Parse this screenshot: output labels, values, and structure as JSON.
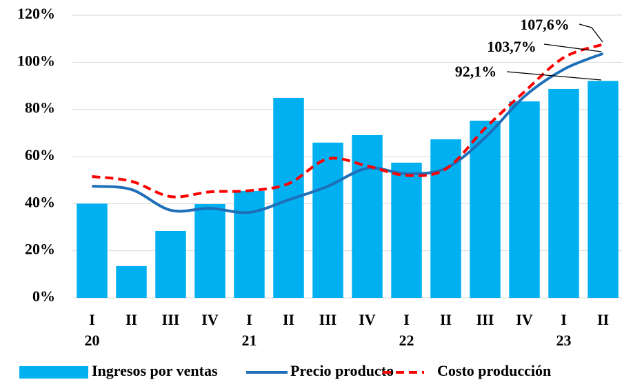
{
  "chart_data": {
    "type": "bar",
    "categories": [
      "I",
      "II",
      "III",
      "IV",
      "I",
      "II",
      "III",
      "IV",
      "I",
      "II",
      "III",
      "IV",
      "I",
      "II"
    ],
    "year_labels": [
      "20",
      null,
      null,
      null,
      "21",
      null,
      null,
      null,
      "22",
      null,
      null,
      null,
      "23",
      null
    ],
    "series": [
      {
        "name": "Ingresos por ventas",
        "type": "bar",
        "color": "#00b0f0",
        "values": [
          40,
          13.5,
          28.4,
          39.8,
          45.4,
          84.9,
          65.9,
          69.1,
          57.4,
          67.3,
          75.2,
          83.4,
          88.7,
          92.1
        ],
        "value_labels": [
          null,
          null,
          null,
          null,
          null,
          null,
          null,
          null,
          null,
          null,
          null,
          null,
          null,
          "92,1%"
        ]
      },
      {
        "name": "Precio producto",
        "type": "line",
        "color": "#1f6fb8",
        "dashed": false,
        "values": [
          47.4,
          46,
          37.2,
          38,
          36.3,
          41.6,
          47.4,
          55,
          52.7,
          55,
          68,
          85.5,
          97,
          103.7
        ],
        "value_labels": [
          null,
          null,
          null,
          null,
          null,
          null,
          null,
          null,
          null,
          null,
          null,
          null,
          null,
          "103,7%"
        ]
      },
      {
        "name": "Costo producción",
        "type": "line",
        "color": "#ff0000",
        "dashed": true,
        "values": [
          51.5,
          49.5,
          43,
          45,
          45.5,
          48.5,
          59,
          56,
          52,
          54.7,
          72,
          87.5,
          102,
          107.6
        ],
        "value_labels": [
          null,
          null,
          null,
          null,
          null,
          null,
          null,
          null,
          null,
          null,
          null,
          null,
          null,
          "107,6%"
        ]
      }
    ],
    "ylim": [
      0,
      120
    ],
    "yticks": [
      {
        "value": 0,
        "label": "0%"
      },
      {
        "value": 20,
        "label": "20%"
      },
      {
        "value": 40,
        "label": "40%"
      },
      {
        "value": 60,
        "label": "60%"
      },
      {
        "value": 80,
        "label": "80%"
      },
      {
        "value": 100,
        "label": "100%"
      },
      {
        "value": 120,
        "label": "120%"
      }
    ],
    "grid": true,
    "legend": "bottom"
  }
}
